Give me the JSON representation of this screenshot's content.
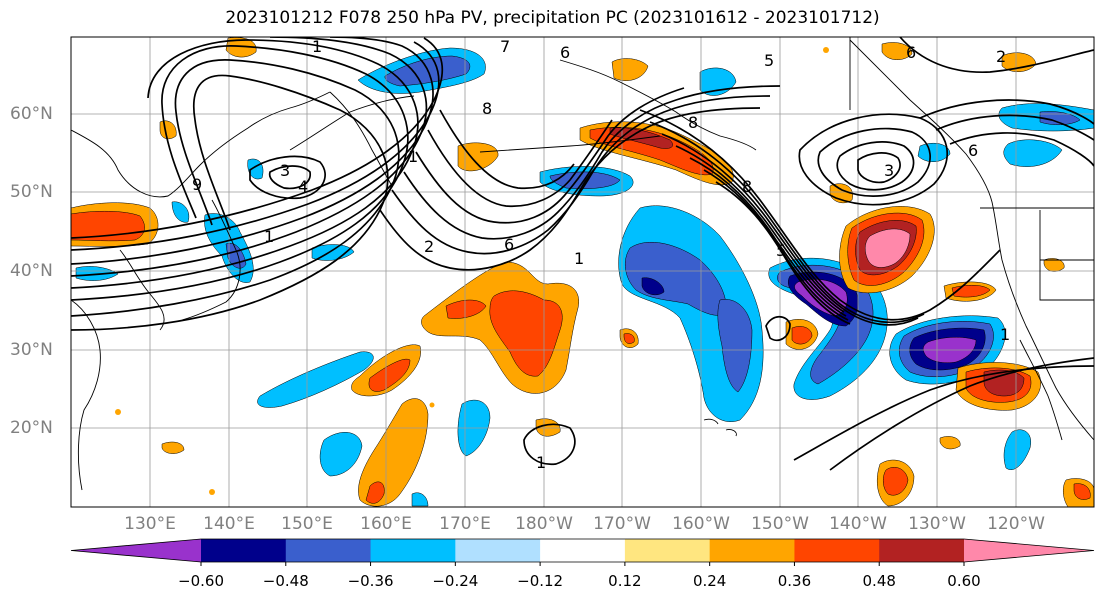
{
  "title": "2023101212 F078 250 hPa PV, precipitation PC (2023101612 - 2023101712)",
  "lat_labels": [
    "60°N",
    "50°N",
    "40°N",
    "30°N",
    "20°N"
  ],
  "lon_labels": [
    "130°E",
    "140°E",
    "150°E",
    "160°E",
    "170°E",
    "180°W",
    "170°W",
    "160°W",
    "150°W",
    "140°W",
    "130°W",
    "120°W"
  ],
  "colorbar": {
    "ticks": [
      "−0.60",
      "−0.48",
      "−0.36",
      "−0.24",
      "−0.12",
      "0.12",
      "0.24",
      "0.36",
      "0.48",
      "0.60"
    ],
    "colors": [
      "#9932cc",
      "#00008b",
      "#3a5fcd",
      "#00bfff",
      "#b0e0ff",
      "#ffffff",
      "#ffe680",
      "#ffa500",
      "#ff4500",
      "#b22222",
      "#ff88aa"
    ]
  },
  "contour_labels": [
    "1",
    "2",
    "3",
    "4",
    "5",
    "6",
    "7",
    "8",
    "9"
  ],
  "fill_colors": {
    "purple": "#9932cc",
    "navy": "#00008b",
    "royal": "#3a5fcd",
    "cyan": "#00bfff",
    "lightblue": "#b0e0ff",
    "yellow": "#ffe680",
    "orange": "#ffa500",
    "redorange": "#ff4500",
    "firebrick": "#b22222",
    "pink": "#ff88aa"
  }
}
